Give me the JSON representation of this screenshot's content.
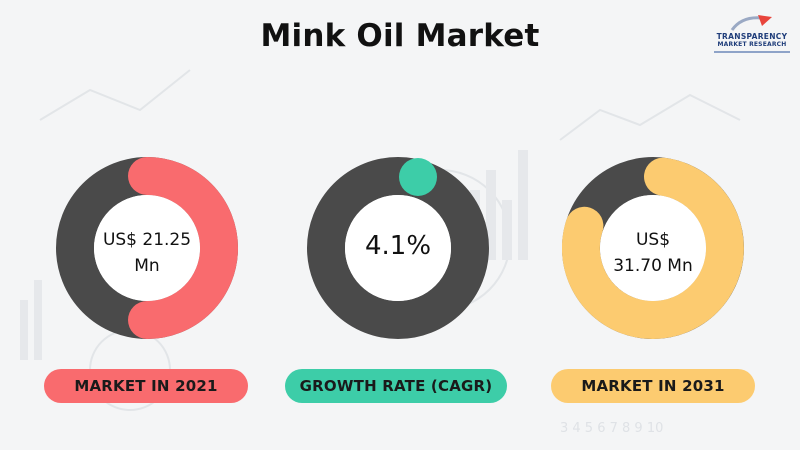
{
  "title": "Mink Oil Market",
  "logo": {
    "line1": "TRANSPARENCY",
    "line2": "MARKET RESEARCH"
  },
  "colors": {
    "dark_ring": "#4a4a4a",
    "red": "#f96b6e",
    "teal": "#3dcda8",
    "yellow": "#fccb70"
  },
  "metrics": [
    {
      "value": "US$ 21.25 Mn",
      "value_line1": "US$ 21.25",
      "value_line2": "Mn",
      "label": "MARKET IN 2021",
      "color": "#f96b6e"
    },
    {
      "value": "4.1%",
      "label": "GROWTH RATE (CAGR)",
      "color": "#3dcda8"
    },
    {
      "value": "US$ 31.70 Mn",
      "value_line1": "US$",
      "value_line2": "31.70 Mn",
      "label": "MARKET IN 2031",
      "color": "#fccb70"
    }
  ]
}
